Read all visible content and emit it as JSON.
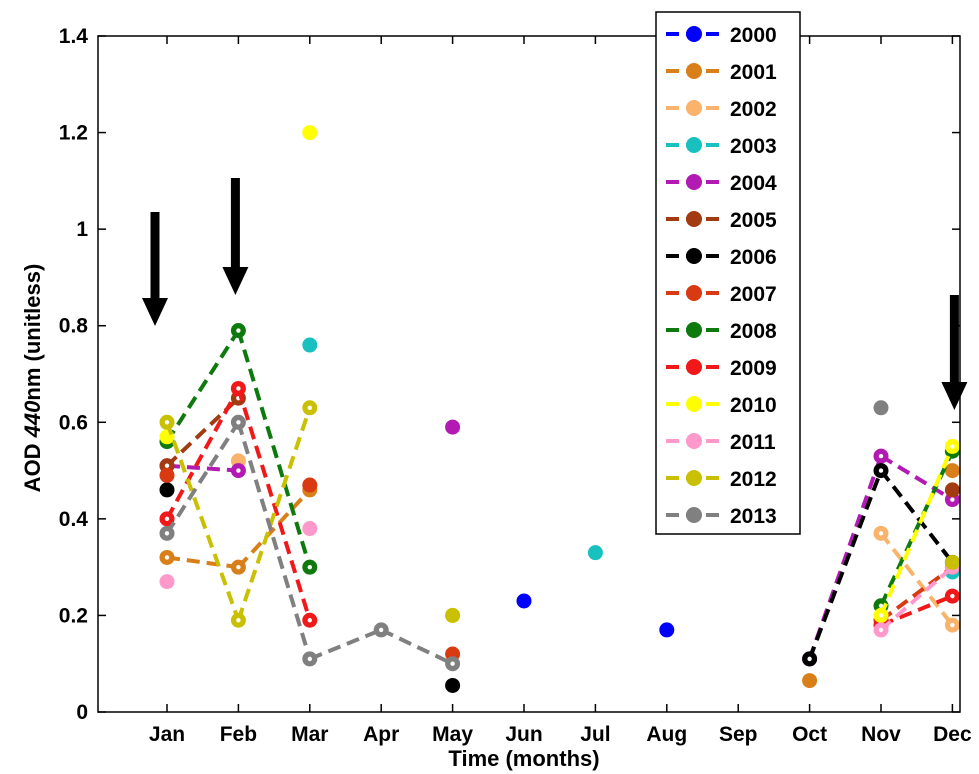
{
  "chart_data": {
    "type": "line",
    "xlabel": "Time (months)",
    "ylabel_parts": [
      "AOD ",
      "440",
      "nm (unitless)"
    ],
    "ylim": [
      0,
      1.4
    ],
    "yticks": [
      "0",
      "0.2",
      "0.4",
      "0.6",
      "0.8",
      "1",
      "1.2",
      "1.4"
    ],
    "categories": [
      "Jan",
      "Feb",
      "Mar",
      "Apr",
      "May",
      "Jun",
      "Jul",
      "Aug",
      "Sep",
      "Oct",
      "Nov",
      "Dec"
    ],
    "grid": false,
    "legend_position": "top-right",
    "arrows_at": [
      "Jan",
      "Feb",
      "Dec"
    ],
    "series": [
      {
        "name": "2000",
        "color": "#0000ff",
        "values": [
          null,
          null,
          null,
          null,
          null,
          0.23,
          null,
          0.17,
          null,
          null,
          null,
          null
        ]
      },
      {
        "name": "2001",
        "color": "#d97f1a",
        "values": [
          0.32,
          0.3,
          0.46,
          null,
          null,
          null,
          null,
          null,
          null,
          0.065,
          null,
          0.5
        ]
      },
      {
        "name": "2002",
        "color": "#f9b36b",
        "values": [
          null,
          0.52,
          null,
          null,
          null,
          null,
          null,
          null,
          null,
          null,
          0.37,
          0.18
        ]
      },
      {
        "name": "2003",
        "color": "#19c0c0",
        "values": [
          null,
          null,
          0.76,
          null,
          null,
          null,
          0.33,
          null,
          null,
          null,
          null,
          0.29
        ]
      },
      {
        "name": "2004",
        "color": "#b31ab3",
        "values": [
          0.51,
          0.5,
          null,
          null,
          0.59,
          null,
          null,
          null,
          null,
          0.11,
          0.53,
          0.44
        ]
      },
      {
        "name": "2005",
        "color": "#a23a12",
        "values": [
          0.51,
          0.65,
          null,
          null,
          null,
          null,
          null,
          null,
          null,
          null,
          null,
          0.46
        ]
      },
      {
        "name": "2006",
        "color": "#000000",
        "values": [
          0.46,
          null,
          null,
          null,
          0.055,
          null,
          null,
          null,
          null,
          0.11,
          0.5,
          0.31
        ]
      },
      {
        "name": "2007",
        "color": "#d93a12",
        "values": [
          0.49,
          null,
          0.47,
          null,
          0.12,
          null,
          null,
          null,
          null,
          null,
          0.19,
          0.3
        ]
      },
      {
        "name": "2008",
        "color": "#0e7a0e",
        "values": [
          0.56,
          0.79,
          0.3,
          null,
          null,
          null,
          null,
          null,
          null,
          null,
          0.22,
          0.54
        ]
      },
      {
        "name": "2009",
        "color": "#f01818",
        "values": [
          0.4,
          0.67,
          0.19,
          null,
          null,
          null,
          null,
          null,
          null,
          null,
          0.18,
          0.24
        ]
      },
      {
        "name": "2010",
        "color": "#ffff00",
        "values": [
          0.57,
          null,
          1.2,
          null,
          0.2,
          null,
          null,
          null,
          null,
          null,
          0.2,
          0.55
        ]
      },
      {
        "name": "2011",
        "color": "#ff99cc",
        "values": [
          0.27,
          null,
          0.38,
          null,
          null,
          null,
          null,
          null,
          null,
          null,
          0.17,
          0.3
        ]
      },
      {
        "name": "2012",
        "color": "#c8c000",
        "values": [
          0.6,
          0.19,
          0.63,
          null,
          0.2,
          null,
          null,
          null,
          null,
          null,
          null,
          0.31
        ]
      },
      {
        "name": "2013",
        "color": "#808080",
        "values": [
          0.37,
          0.6,
          0.11,
          0.17,
          0.1,
          null,
          null,
          null,
          null,
          null,
          0.63,
          null
        ]
      }
    ]
  }
}
